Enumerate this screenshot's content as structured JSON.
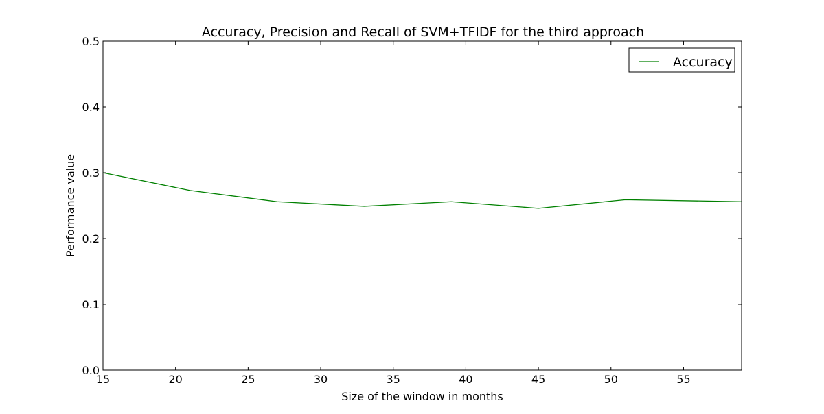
{
  "chart_data": {
    "type": "line",
    "title": "Accuracy, Precision and Recall of SVM+TFIDF for the third approach",
    "xlabel": "Size of the window in months",
    "ylabel": "Performance value",
    "xlim": [
      15,
      59
    ],
    "ylim": [
      0.0,
      0.5
    ],
    "x_ticks": [
      15,
      20,
      25,
      30,
      35,
      40,
      45,
      50,
      55
    ],
    "x_tick_labels": [
      "15",
      "20",
      "25",
      "30",
      "35",
      "40",
      "45",
      "50",
      "55"
    ],
    "y_ticks": [
      0.0,
      0.1,
      0.2,
      0.3,
      0.4,
      0.5
    ],
    "y_tick_labels": [
      "0.0",
      "0.1",
      "0.2",
      "0.3",
      "0.4",
      "0.5"
    ],
    "x": [
      15,
      21,
      27,
      33,
      39,
      45,
      51,
      59
    ],
    "series": [
      {
        "name": "Accuracy",
        "color": "#008000",
        "values": [
          0.3,
          0.273,
          0.256,
          0.249,
          0.256,
          0.246,
          0.259,
          0.256
        ]
      }
    ],
    "grid": false,
    "legend": "top-right"
  }
}
